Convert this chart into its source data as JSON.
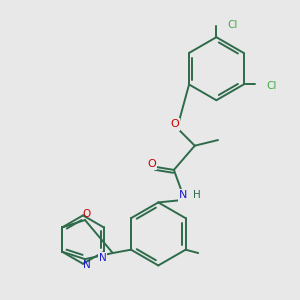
{
  "background_color": "#e8e8e8",
  "bond_color": "#2d6b4a",
  "atom_colors": {
    "O": "#cc0000",
    "N": "#1a1acc",
    "Cl": "#44aa44",
    "C": "#2d6b4a",
    "H": "#2d6b4a"
  },
  "figsize": [
    3.0,
    3.0
  ],
  "dpi": 100,
  "lw": 1.4,
  "fs": 7.5
}
